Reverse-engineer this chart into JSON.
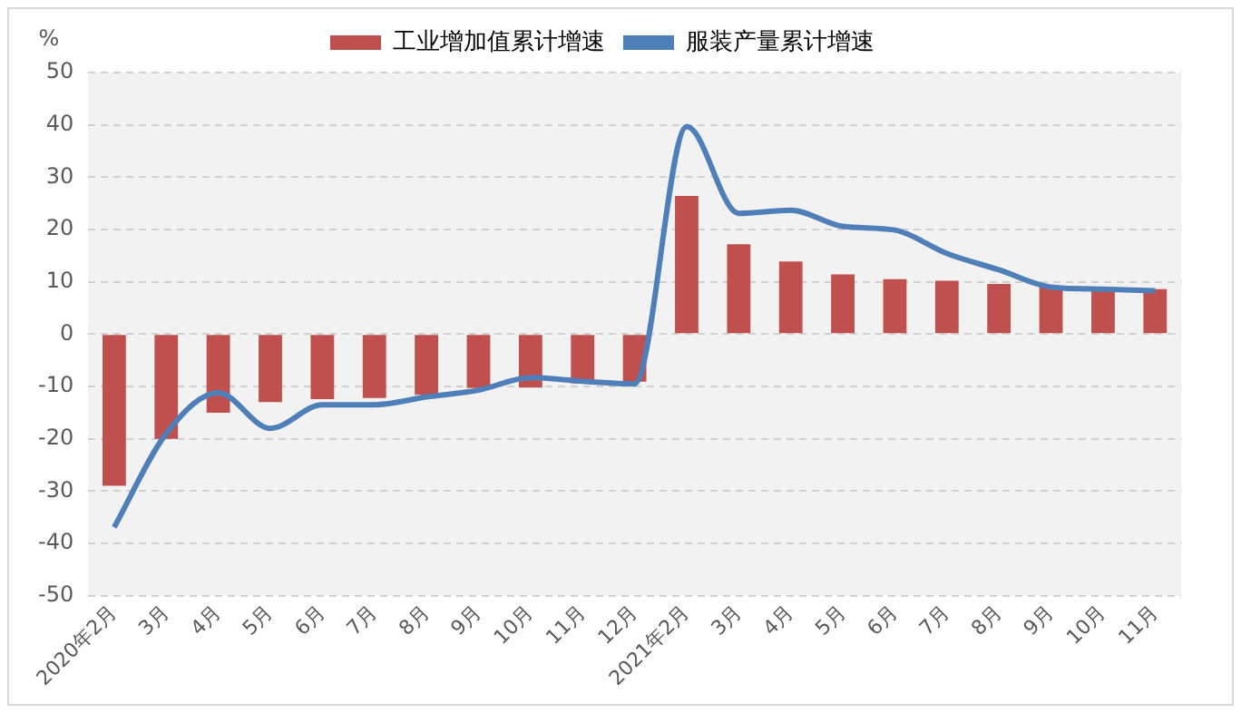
{
  "chart_data": {
    "type": "bar",
    "ylabel": "%",
    "categories": [
      "2020年2月",
      "3月",
      "4月",
      "5月",
      "6月",
      "7月",
      "8月",
      "9月",
      "10月",
      "11月",
      "12月",
      "2021年2月",
      "3月",
      "4月",
      "5月",
      "6月",
      "7月",
      "8月",
      "9月",
      "10月",
      "11月"
    ],
    "series": [
      {
        "name": "工业增加值累计增速",
        "color": "#c0504d",
        "values": [
          -29,
          -20,
          -15,
          -13,
          -12.4,
          -12.2,
          -11.6,
          -10.3,
          -10.2,
          -9.4,
          -9.1,
          26.4,
          17.2,
          13.9,
          11.4,
          10.5,
          10.2,
          9.6,
          9.1,
          8.8,
          8.6
        ]
      },
      {
        "name": "服装产量累计增速",
        "type": "line",
        "color": "#4f7fb8",
        "values": [
          -36.9,
          -19,
          -11.2,
          -18,
          -13.5,
          -13.5,
          -12,
          -10.7,
          -8.3,
          -9,
          -9.5,
          39.7,
          23.1,
          23.7,
          20.6,
          19.9,
          15.4,
          12.3,
          9,
          8.6,
          8.3
        ]
      }
    ],
    "ylim": [
      -50,
      50
    ],
    "yticks": [
      -50,
      -40,
      -30,
      -20,
      -10,
      0,
      10,
      20,
      30,
      40,
      50
    ],
    "grid": "y",
    "legend": "top",
    "marker": "none",
    "line_style": "solid"
  }
}
